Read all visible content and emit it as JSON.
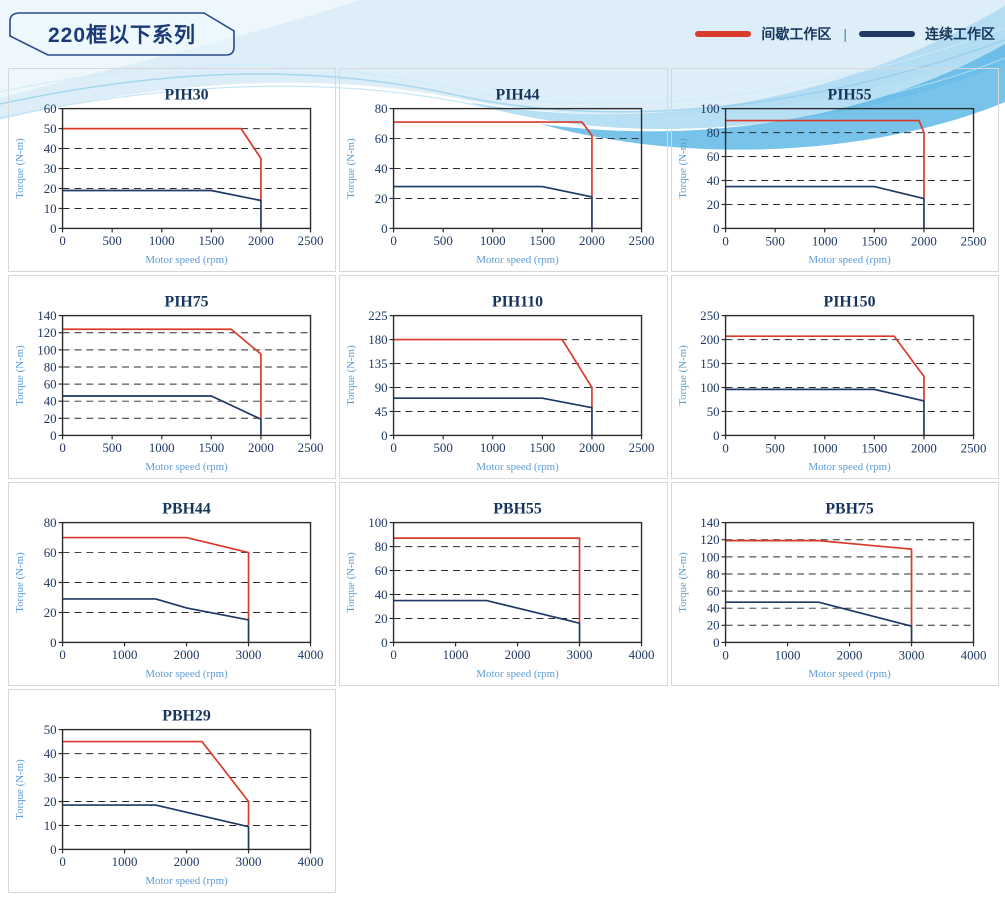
{
  "page": {
    "header_title": "220框以下系列"
  },
  "legend": {
    "items": [
      {
        "label": "间歇工作区",
        "color": "#d93a2b"
      },
      {
        "label": "连续工作区",
        "color": "#1f3864"
      }
    ],
    "separator": "|"
  },
  "colors": {
    "intermittent": "#d93a2b",
    "continuous": "#1f3864",
    "tick_text": "#1f3864",
    "axis_label": "#5b9bd5",
    "card_border": "#d8d8d8"
  },
  "chart_data": [
    {
      "type": "line",
      "title": "PIH30",
      "xlabel": "Motor speed (rpm)",
      "ylabel": "Torque (N-m)",
      "xlim": [
        0,
        2500
      ],
      "ylim": [
        0,
        60
      ],
      "xticks": [
        0,
        500,
        1000,
        1500,
        2000,
        2500
      ],
      "yticks": [
        0,
        10,
        20,
        30,
        40,
        50,
        60
      ],
      "grid": "dashed-horizontal",
      "legend_position": "none",
      "series": [
        {
          "name": "间歇工作区",
          "color": "#d93a2b",
          "points": [
            [
              0,
              50
            ],
            [
              1800,
              50
            ],
            [
              2000,
              35
            ],
            [
              2000,
              14
            ]
          ]
        },
        {
          "name": "连续工作区",
          "color": "#1f3864",
          "points": [
            [
              0,
              19
            ],
            [
              1500,
              19
            ],
            [
              2000,
              14
            ],
            [
              2000,
              0
            ]
          ]
        }
      ]
    },
    {
      "type": "line",
      "title": "PIH44",
      "xlabel": "Motor speed (rpm)",
      "ylabel": "Torque (N-m)",
      "xlim": [
        0,
        2500
      ],
      "ylim": [
        0,
        80
      ],
      "xticks": [
        0,
        500,
        1000,
        1500,
        2000,
        2500
      ],
      "yticks": [
        0,
        20,
        40,
        60,
        80
      ],
      "grid": "dashed-horizontal",
      "legend_position": "none",
      "series": [
        {
          "name": "间歇工作区",
          "color": "#d93a2b",
          "points": [
            [
              0,
              71
            ],
            [
              1900,
              71
            ],
            [
              2000,
              62
            ],
            [
              2000,
              21
            ]
          ]
        },
        {
          "name": "连续工作区",
          "color": "#1f3864",
          "points": [
            [
              0,
              28
            ],
            [
              1500,
              28
            ],
            [
              2000,
              21
            ],
            [
              2000,
              0
            ]
          ]
        }
      ]
    },
    {
      "type": "line",
      "title": "PIH55",
      "xlabel": "Motor speed (rpm)",
      "ylabel": "Torque (N-m)",
      "xlim": [
        0,
        2500
      ],
      "ylim": [
        0,
        100
      ],
      "xticks": [
        0,
        500,
        1000,
        1500,
        2000,
        2500
      ],
      "yticks": [
        0,
        20,
        40,
        60,
        80,
        100
      ],
      "grid": "dashed-horizontal",
      "legend_position": "none",
      "series": [
        {
          "name": "间歇工作区",
          "color": "#d93a2b",
          "points": [
            [
              0,
              90
            ],
            [
              1950,
              90
            ],
            [
              2000,
              80
            ],
            [
              2000,
              25
            ]
          ]
        },
        {
          "name": "连续工作区",
          "color": "#1f3864",
          "points": [
            [
              0,
              35
            ],
            [
              1500,
              35
            ],
            [
              2000,
              25
            ],
            [
              2000,
              0
            ]
          ]
        }
      ]
    },
    {
      "type": "line",
      "title": "PIH75",
      "xlabel": "Motor speed (rpm)",
      "ylabel": "Torque (N-m)",
      "xlim": [
        0,
        2500
      ],
      "ylim": [
        0,
        140
      ],
      "xticks": [
        0,
        500,
        1000,
        1500,
        2000,
        2500
      ],
      "yticks": [
        0,
        20,
        40,
        60,
        80,
        100,
        120,
        140
      ],
      "grid": "dashed-horizontal",
      "legend_position": "none",
      "series": [
        {
          "name": "间歇工作区",
          "color": "#d93a2b",
          "points": [
            [
              0,
              124
            ],
            [
              1700,
              124
            ],
            [
              2000,
              95
            ],
            [
              2000,
              19
            ]
          ]
        },
        {
          "name": "连续工作区",
          "color": "#1f3864",
          "points": [
            [
              0,
              46
            ],
            [
              1500,
              46
            ],
            [
              2000,
              19
            ],
            [
              2000,
              0
            ]
          ]
        }
      ]
    },
    {
      "type": "line",
      "title": "PIH110",
      "xlabel": "Motor speed (rpm)",
      "ylabel": "Torque (N-m)",
      "xlim": [
        0,
        2500
      ],
      "ylim": [
        0,
        225
      ],
      "xticks": [
        0,
        500,
        1000,
        1500,
        2000,
        2500
      ],
      "yticks": [
        0,
        45,
        90,
        135,
        180,
        225
      ],
      "grid": "dashed-horizontal",
      "legend_position": "none",
      "series": [
        {
          "name": "间歇工作区",
          "color": "#d93a2b",
          "points": [
            [
              0,
              180
            ],
            [
              1700,
              180
            ],
            [
              2000,
              90
            ],
            [
              2000,
              52
            ]
          ]
        },
        {
          "name": "连续工作区",
          "color": "#1f3864",
          "points": [
            [
              0,
              70
            ],
            [
              1500,
              70
            ],
            [
              2000,
              52
            ],
            [
              2000,
              0
            ]
          ]
        }
      ]
    },
    {
      "type": "line",
      "title": "PIH150",
      "xlabel": "Motor speed (rpm)",
      "ylabel": "Torque (N-m)",
      "xlim": [
        0,
        2500
      ],
      "ylim": [
        0,
        250
      ],
      "xticks": [
        0,
        500,
        1000,
        1500,
        2000,
        2500
      ],
      "yticks": [
        0,
        50,
        100,
        150,
        200,
        250
      ],
      "grid": "dashed-horizontal",
      "legend_position": "none",
      "series": [
        {
          "name": "间歇工作区",
          "color": "#d93a2b",
          "points": [
            [
              0,
              207
            ],
            [
              1700,
              207
            ],
            [
              2000,
              123
            ],
            [
              2000,
              72
            ]
          ]
        },
        {
          "name": "连续工作区",
          "color": "#1f3864",
          "points": [
            [
              0,
              96
            ],
            [
              1500,
              96
            ],
            [
              2000,
              72
            ],
            [
              2000,
              0
            ]
          ]
        }
      ]
    },
    {
      "type": "line",
      "title": "PBH44",
      "xlabel": "Motor speed (rpm)",
      "ylabel": "Torque (N-m)",
      "xlim": [
        0,
        4000
      ],
      "ylim": [
        0,
        80
      ],
      "xticks": [
        0,
        1000,
        2000,
        3000,
        4000
      ],
      "yticks": [
        0,
        20,
        40,
        60,
        80
      ],
      "grid": "dashed-horizontal",
      "legend_position": "none",
      "series": [
        {
          "name": "间歇工作区",
          "color": "#d93a2b",
          "points": [
            [
              0,
              70
            ],
            [
              2000,
              70
            ],
            [
              3000,
              60
            ],
            [
              3000,
              15
            ]
          ]
        },
        {
          "name": "连续工作区",
          "color": "#1f3864",
          "points": [
            [
              0,
              29
            ],
            [
              1500,
              29
            ],
            [
              2000,
              23
            ],
            [
              3000,
              15
            ],
            [
              3000,
              0
            ]
          ]
        }
      ]
    },
    {
      "type": "line",
      "title": "PBH55",
      "xlabel": "Motor speed (rpm)",
      "ylabel": "Torque (N-m)",
      "xlim": [
        0,
        4000
      ],
      "ylim": [
        0,
        100
      ],
      "xticks": [
        0,
        1000,
        2000,
        3000,
        4000
      ],
      "yticks": [
        0,
        20,
        40,
        60,
        80,
        100
      ],
      "grid": "dashed-horizontal",
      "legend_position": "none",
      "series": [
        {
          "name": "间歇工作区",
          "color": "#d93a2b",
          "points": [
            [
              0,
              87
            ],
            [
              3000,
              87
            ],
            [
              3000,
              16
            ]
          ]
        },
        {
          "name": "连续工作区",
          "color": "#1f3864",
          "points": [
            [
              0,
              35
            ],
            [
              1500,
              35
            ],
            [
              3000,
              16
            ],
            [
              3000,
              0
            ]
          ]
        }
      ]
    },
    {
      "type": "line",
      "title": "PBH75",
      "xlabel": "Motor speed (rpm)",
      "ylabel": "Torque (N-m)",
      "xlim": [
        0,
        4000
      ],
      "ylim": [
        0,
        140
      ],
      "xticks": [
        0,
        1000,
        2000,
        3000,
        4000
      ],
      "yticks": [
        0,
        20,
        40,
        60,
        80,
        100,
        120,
        140
      ],
      "grid": "dashed-horizontal",
      "legend_position": "none",
      "series": [
        {
          "name": "间歇工作区",
          "color": "#d93a2b",
          "points": [
            [
              0,
              119
            ],
            [
              1500,
              119
            ],
            [
              3000,
              109
            ],
            [
              3000,
              19
            ]
          ]
        },
        {
          "name": "连续工作区",
          "color": "#1f3864",
          "points": [
            [
              0,
              47
            ],
            [
              1500,
              47
            ],
            [
              3000,
              19
            ],
            [
              3000,
              0
            ]
          ]
        }
      ]
    },
    {
      "type": "line",
      "title": "PBH29",
      "xlabel": "Motor speed (rpm)",
      "ylabel": "Torque (N-m)",
      "xlim": [
        0,
        4000
      ],
      "ylim": [
        0,
        50
      ],
      "xticks": [
        0,
        1000,
        2000,
        3000,
        4000
      ],
      "yticks": [
        0,
        10,
        20,
        30,
        40,
        50
      ],
      "grid": "dashed-horizontal",
      "legend_position": "none",
      "series": [
        {
          "name": "间歇工作区",
          "color": "#d93a2b",
          "points": [
            [
              0,
              45
            ],
            [
              2250,
              45
            ],
            [
              3000,
              20
            ],
            [
              3000,
              10
            ]
          ]
        },
        {
          "name": "连续工作区",
          "color": "#1f3864",
          "points": [
            [
              0,
              18.5
            ],
            [
              1500,
              18.5
            ],
            [
              3000,
              9.5
            ],
            [
              3000,
              0
            ]
          ]
        }
      ]
    }
  ]
}
